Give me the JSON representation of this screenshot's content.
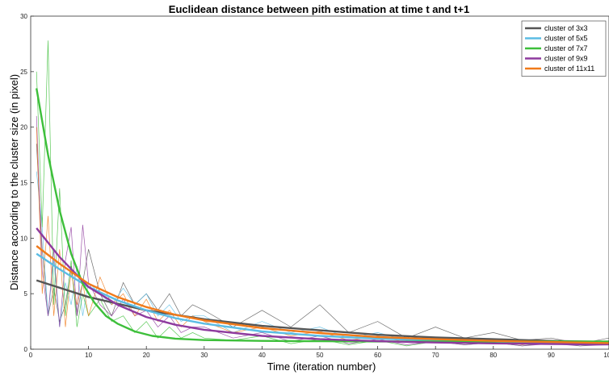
{
  "chart_data": {
    "type": "line",
    "title": "Euclidean distance between pith estimation at time t and t+1",
    "xlabel": "Time (iteration number)",
    "ylabel": "Distance according to the cluster size (in pixel)",
    "xlim": [
      0,
      100
    ],
    "ylim": [
      0,
      30
    ],
    "xticks": [
      "0",
      "10",
      "20",
      "30",
      "40",
      "50",
      "60",
      "70",
      "80",
      "90",
      "100"
    ],
    "yticks": [
      "0",
      "5",
      "10",
      "15",
      "20",
      "25",
      "30"
    ],
    "grid": false,
    "legend_position": "top-right",
    "series": [
      {
        "name": "cluster of 3x3",
        "color": "#555555",
        "fit": {
          "x": [
            1,
            10,
            20,
            30,
            40,
            50,
            60,
            70,
            80,
            90,
            100
          ],
          "y": [
            6.2,
            4.7,
            3.5,
            2.7,
            2.1,
            1.7,
            1.3,
            1.05,
            0.9,
            0.75,
            0.65
          ]
        },
        "raw": {
          "x": [
            1,
            2,
            3,
            4,
            5,
            6,
            7,
            8,
            9,
            10,
            12,
            14,
            16,
            18,
            20,
            22,
            24,
            26,
            28,
            30,
            35,
            40,
            45,
            50,
            55,
            60,
            65,
            70,
            75,
            80,
            85,
            90,
            95,
            100
          ],
          "y": [
            18.5,
            9,
            3,
            5.5,
            2.5,
            4,
            7.5,
            3,
            6,
            9,
            5,
            3,
            6,
            4,
            5,
            3.5,
            5,
            3,
            4,
            3.5,
            2,
            3.5,
            2,
            4,
            1.5,
            2.5,
            1,
            2,
            1,
            1.5,
            0.8,
            1,
            0.5,
            1
          ]
        }
      },
      {
        "name": "cluster of 5x5",
        "color": "#5bbce4",
        "fit": {
          "x": [
            1,
            5,
            10,
            15,
            20,
            25,
            30,
            40,
            50,
            60,
            70,
            80,
            90,
            100
          ],
          "y": [
            8.6,
            7.2,
            5.6,
            4.4,
            3.5,
            2.8,
            2.3,
            1.6,
            1.2,
            0.95,
            0.8,
            0.7,
            0.6,
            0.55
          ]
        },
        "raw": {
          "x": [
            1,
            2,
            3,
            4,
            5,
            6,
            7,
            8,
            9,
            10,
            12,
            14,
            16,
            18,
            20,
            22,
            24,
            26,
            28,
            30,
            35,
            40,
            45,
            50,
            55,
            60,
            65,
            70,
            75,
            80,
            85,
            90,
            95,
            100
          ],
          "y": [
            16,
            11,
            3,
            8,
            2,
            6,
            4,
            7.5,
            3,
            6,
            5,
            4,
            5.5,
            4,
            5,
            3,
            4,
            2.5,
            3,
            3,
            1.5,
            2.5,
            1.5,
            2,
            1,
            1.5,
            0.8,
            1,
            0.6,
            0.9,
            0.5,
            0.8,
            0.4,
            0.7
          ]
        }
      },
      {
        "name": "cluster of 7x7",
        "color": "#3dbf3a",
        "fit": {
          "x": [
            1,
            3,
            5,
            7,
            9,
            11,
            13,
            15,
            18,
            21,
            25,
            30,
            40,
            50,
            60,
            70,
            80,
            90,
            100
          ],
          "y": [
            23.5,
            17.5,
            12.5,
            8.6,
            5.9,
            4.2,
            3.0,
            2.3,
            1.6,
            1.2,
            0.95,
            0.82,
            0.75,
            0.72,
            0.7,
            0.7,
            0.7,
            0.7,
            0.7
          ]
        },
        "raw": {
          "x": [
            1,
            2,
            3,
            4,
            5,
            6,
            7,
            8,
            9,
            10,
            12,
            14,
            16,
            18,
            20,
            22,
            24,
            26,
            28,
            30,
            35,
            40,
            45,
            50,
            55,
            60,
            65,
            70,
            75,
            80,
            85,
            90,
            95,
            100
          ],
          "y": [
            25,
            11,
            27.8,
            4,
            14.5,
            3,
            8,
            2,
            5,
            3,
            4.5,
            2.5,
            3,
            1.5,
            2.5,
            1,
            2,
            1,
            1.5,
            1,
            0.8,
            1.2,
            0.5,
            0.9,
            0.4,
            0.8,
            0.3,
            0.7,
            0.4,
            0.6,
            0.3,
            0.6,
            0.3,
            0.5
          ]
        }
      },
      {
        "name": "cluster of 9x9",
        "color": "#8e3a9e",
        "fit": {
          "x": [
            1,
            5,
            10,
            15,
            20,
            25,
            30,
            40,
            50,
            60,
            70,
            80,
            90,
            100
          ],
          "y": [
            10.9,
            8.3,
            5.6,
            4.0,
            2.9,
            2.2,
            1.75,
            1.2,
            0.9,
            0.72,
            0.6,
            0.52,
            0.47,
            0.43
          ]
        },
        "raw": {
          "x": [
            1,
            2,
            3,
            4,
            5,
            6,
            7,
            8,
            9,
            10,
            12,
            14,
            16,
            18,
            20,
            22,
            24,
            26,
            28,
            30,
            35,
            40,
            45,
            50,
            55,
            60,
            65,
            70,
            75,
            80,
            85,
            90,
            95,
            100
          ],
          "y": [
            21,
            7,
            3,
            9,
            2,
            8,
            11,
            3,
            11.2,
            6,
            4,
            3,
            4.5,
            3,
            3.5,
            2,
            3,
            1.5,
            2,
            2,
            1,
            1.5,
            0.7,
            1.2,
            0.5,
            0.9,
            0.4,
            0.7,
            0.4,
            0.6,
            0.3,
            0.5,
            0.3,
            0.4
          ]
        }
      },
      {
        "name": "cluster of 11x11",
        "color": "#f07a1a",
        "fit": {
          "x": [
            1,
            5,
            10,
            15,
            20,
            25,
            30,
            40,
            50,
            60,
            70,
            80,
            90,
            100
          ],
          "y": [
            9.3,
            7.7,
            5.9,
            4.7,
            3.8,
            3.1,
            2.6,
            1.9,
            1.45,
            1.1,
            0.9,
            0.75,
            0.65,
            0.55
          ]
        },
        "raw": {
          "x": [
            1,
            2,
            3,
            4,
            5,
            6,
            7,
            8,
            9,
            10,
            12,
            14,
            16,
            18,
            20,
            22,
            24,
            26,
            28,
            30,
            35,
            40,
            45,
            50,
            55,
            60,
            65,
            70,
            75,
            80,
            85,
            90,
            95,
            100
          ],
          "y": [
            20,
            5,
            12,
            3,
            9,
            2,
            7,
            4,
            6,
            3,
            6.5,
            4,
            5,
            3,
            4.5,
            2.5,
            3.5,
            2,
            3,
            2.5,
            1.5,
            2,
            1.2,
            1.6,
            0.8,
            1.2,
            0.6,
            1,
            0.5,
            0.8,
            0.4,
            0.7,
            0.4,
            0.6
          ]
        }
      }
    ]
  }
}
